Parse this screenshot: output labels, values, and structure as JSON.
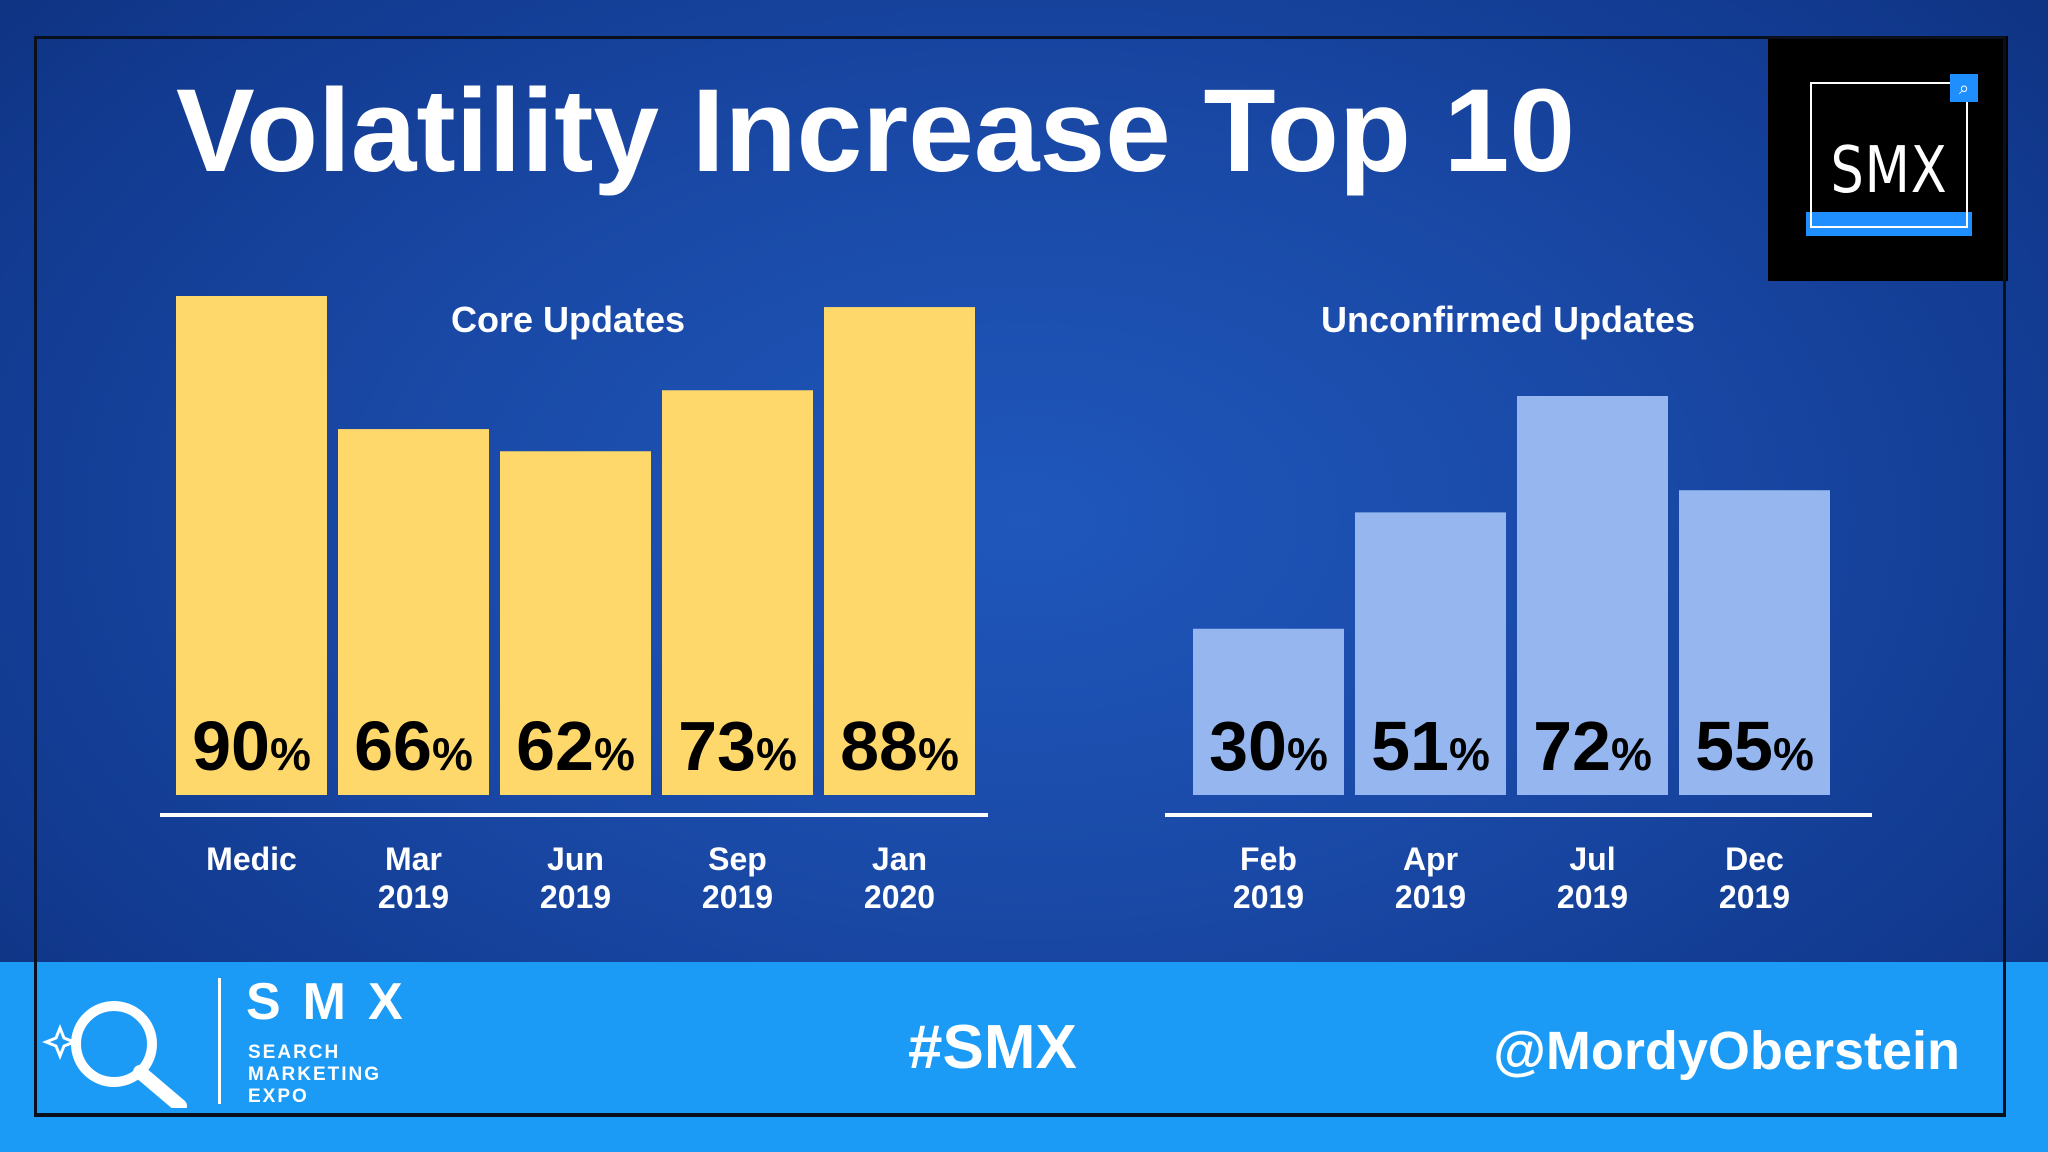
{
  "slide": {
    "title": "Volatility Increase Top 10"
  },
  "logo": {
    "text": "SMX"
  },
  "footer": {
    "brand": "SMX",
    "subtitle": "SEARCH\nMARKETING\nEXPO",
    "hashtag": "#SMX",
    "handle": "@MordyOberstein"
  },
  "colors": {
    "core_bar": "#ffd86b",
    "unconfirmed_bar": "#95b6ee",
    "footer": "#1b9bf5"
  },
  "chart_data": [
    {
      "type": "bar",
      "title": "Core Updates",
      "categories": [
        [
          "Medic"
        ],
        [
          "Mar",
          "2019"
        ],
        [
          "Jun",
          "2019"
        ],
        [
          "Sep",
          "2019"
        ],
        [
          "Jan",
          "2020"
        ]
      ],
      "values": [
        90,
        66,
        62,
        73,
        88
      ],
      "value_suffix": "%",
      "ylim": [
        0,
        100
      ],
      "xlabel": "",
      "ylabel": "",
      "grid": false
    },
    {
      "type": "bar",
      "title": "Unconfirmed Updates",
      "categories": [
        [
          "Feb",
          "2019"
        ],
        [
          "Apr",
          "2019"
        ],
        [
          "Jul",
          "2019"
        ],
        [
          "Dec",
          "2019"
        ]
      ],
      "values": [
        30,
        51,
        72,
        55
      ],
      "value_suffix": "%",
      "ylim": [
        0,
        100
      ],
      "xlabel": "",
      "ylabel": "",
      "grid": false
    }
  ]
}
